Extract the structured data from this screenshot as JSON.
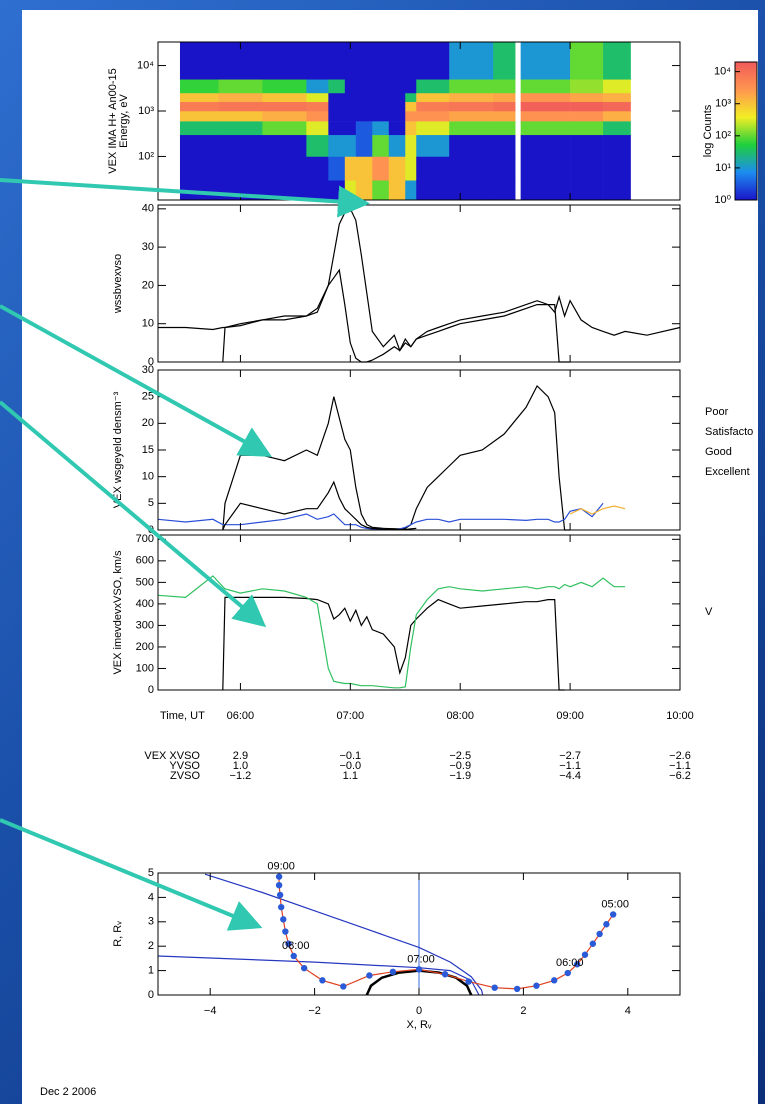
{
  "chart_data": [
    {
      "type": "heatmap",
      "ylabel": [
        "VEX IMA H+ An00-15",
        "Energy, eV"
      ],
      "log_scale": true,
      "xlim": [
        5.25,
        10
      ],
      "ylim": [
        11,
        33000
      ],
      "yticks": [
        {
          "value": 100,
          "label": "10²"
        },
        {
          "value": 1000,
          "label": "10³"
        },
        {
          "value": 10000,
          "label": "10⁴"
        }
      ],
      "x_edges": [
        5.45,
        5.8,
        6.2,
        6.6,
        6.8,
        6.95,
        7.05,
        7.2,
        7.35,
        7.5,
        7.6,
        7.9,
        8.3,
        8.5,
        8.55,
        9.0,
        9.3,
        9.55
      ],
      "y_edges": [
        11,
        30,
        100,
        300,
        600,
        1000,
        1600,
        2500,
        5000,
        33000
      ],
      "z": [
        [
          0,
          0,
          0,
          1.5,
          3,
          3.8,
          3,
          1.8,
          0
        ],
        [
          0,
          0,
          0,
          1.5,
          3,
          3.9,
          3.2,
          2,
          0
        ],
        [
          0,
          0,
          0,
          2,
          3.2,
          3.9,
          3,
          1.8,
          0
        ],
        [
          0,
          0,
          1.5,
          2.5,
          3.5,
          3.8,
          2.5,
          1,
          0
        ],
        [
          0,
          0.5,
          1,
          0,
          0,
          0,
          0,
          1.5,
          0
        ],
        [
          2.5,
          3,
          1,
          0,
          0,
          0,
          0,
          0,
          0
        ],
        [
          3,
          3,
          0.5,
          0.5,
          0,
          0,
          0,
          0,
          0
        ],
        [
          2,
          3.5,
          2,
          1,
          0,
          0,
          0,
          0,
          0
        ],
        [
          3,
          3,
          1,
          0,
          0,
          0,
          0,
          0,
          0
        ],
        [
          1,
          2.5,
          2.5,
          3,
          3.5,
          3,
          1.5,
          0,
          0
        ],
        [
          0,
          0,
          1,
          2.5,
          3.5,
          3.8,
          3,
          1.5,
          0
        ],
        [
          0,
          0,
          0,
          2,
          3.3,
          3.9,
          3.2,
          2,
          1
        ],
        [
          0,
          0,
          0,
          2,
          3.3,
          4,
          3.3,
          2,
          1.5
        ],
        [
          null,
          null,
          null,
          null,
          null,
          null,
          null,
          null,
          null
        ],
        [
          0,
          0,
          0,
          2,
          3.5,
          4.2,
          3.5,
          2,
          1
        ],
        [
          0,
          0,
          0,
          2,
          3.5,
          4.2,
          3.3,
          2.2,
          2
        ],
        [
          0,
          0,
          0,
          1.5,
          3.2,
          4.1,
          3.2,
          2.5,
          1.5
        ]
      ],
      "colorbar": {
        "label": "log Counts",
        "zlim": [
          0,
          4.3
        ],
        "colormap": [
          "#1a14c8",
          "#1d8cf0",
          "#1ecf3c",
          "#f2ee24",
          "#ff9650",
          "#f05a5a"
        ],
        "ticks": [
          {
            "value": 0,
            "label": "10⁰"
          },
          {
            "value": 1,
            "label": "10¹"
          },
          {
            "value": 2,
            "label": "10²"
          },
          {
            "value": 3,
            "label": "10³"
          },
          {
            "value": 4,
            "label": "10⁴"
          }
        ]
      }
    },
    {
      "type": "line",
      "ylabel": [
        "wssbvexvso"
      ],
      "xlim": [
        5.25,
        10
      ],
      "ylim": [
        0,
        41
      ],
      "yticks": [
        0,
        10,
        20,
        30,
        40
      ],
      "x": [
        5.25,
        5.5,
        5.75,
        5.84,
        5.86,
        6.0,
        6.2,
        6.4,
        6.6,
        6.7,
        6.8,
        6.85,
        6.9,
        6.95,
        7.0,
        7.05,
        7.1,
        7.15,
        7.2,
        7.3,
        7.4,
        7.45,
        7.5,
        7.55,
        7.6,
        7.7,
        7.8,
        7.9,
        8.0,
        8.2,
        8.4,
        8.6,
        8.7,
        8.8,
        8.86,
        8.9,
        8.95,
        9.0,
        9.1,
        9.2,
        9.3,
        9.4,
        9.5,
        9.7,
        10.0
      ],
      "series": [
        {
          "color": "#000000",
          "values": [
            9,
            9,
            8.5,
            9,
            9,
            9.5,
            11,
            12,
            12,
            13,
            20,
            28,
            36,
            39,
            40,
            37,
            28,
            18,
            8,
            4,
            7,
            3,
            6,
            4,
            6,
            8,
            9,
            10,
            11,
            12,
            13,
            15,
            16,
            15,
            13,
            17,
            12,
            16,
            11,
            9,
            8,
            7,
            8,
            7,
            9
          ]
        },
        {
          "color": "#000000",
          "values": [
            null,
            null,
            null,
            0,
            9,
            10,
            11,
            11,
            12,
            14,
            20,
            22,
            24,
            15,
            5,
            1,
            0,
            0,
            0.5,
            2,
            4,
            3,
            5,
            4,
            6,
            7,
            8,
            9,
            10,
            11,
            12,
            14,
            15,
            15,
            15,
            0,
            0,
            0,
            null,
            null,
            null,
            null,
            null,
            null,
            null
          ]
        }
      ]
    },
    {
      "type": "line",
      "ylabel": [
        "VEX wsgeyeld densm⁻³"
      ],
      "xlim": [
        5.25,
        10
      ],
      "ylim": [
        0,
        30
      ],
      "yticks": [
        0,
        5,
        10,
        15,
        20,
        25,
        30
      ],
      "x": [
        5.25,
        5.5,
        5.75,
        5.84,
        5.86,
        6.0,
        6.2,
        6.4,
        6.6,
        6.7,
        6.8,
        6.85,
        6.9,
        6.95,
        7.0,
        7.05,
        7.1,
        7.15,
        7.2,
        7.3,
        7.4,
        7.45,
        7.5,
        7.55,
        7.6,
        7.7,
        7.8,
        7.9,
        8.0,
        8.2,
        8.4,
        8.6,
        8.7,
        8.8,
        8.86,
        8.9,
        8.95,
        9.0,
        9.1,
        9.2,
        9.3,
        9.4,
        9.5,
        9.7,
        10.0
      ],
      "series": [
        {
          "name": "Poor",
          "color": "#000000",
          "values": [
            null,
            null,
            null,
            0,
            5,
            14,
            14,
            13,
            15,
            14,
            20,
            25,
            21,
            17,
            15,
            8,
            3,
            1,
            0.5,
            0.3,
            0.2,
            0.2,
            0.3,
            1,
            4,
            8,
            10,
            12,
            14,
            15,
            18,
            23,
            27,
            25,
            22,
            10,
            0,
            0,
            null,
            null,
            null,
            null,
            null,
            null,
            null
          ]
        },
        {
          "name": "Satisfacto",
          "color": "#2a4fd8",
          "values": [
            2,
            1.5,
            2,
            1,
            1,
            1,
            1.5,
            2,
            3,
            2,
            2.5,
            3,
            2,
            1,
            1,
            1,
            0.5,
            0.3,
            0.2,
            0.2,
            0.1,
            0.2,
            0.5,
            1,
            1.5,
            2,
            2,
            1.5,
            2,
            2,
            2,
            1.8,
            2,
            2,
            1.5,
            1.5,
            2,
            3.5,
            4,
            2.5,
            5,
            null,
            null,
            null,
            null
          ]
        },
        {
          "name": "Good",
          "color": "#f0b030",
          "values": [
            null,
            null,
            null,
            null,
            null,
            null,
            null,
            null,
            null,
            null,
            null,
            null,
            null,
            null,
            null,
            null,
            null,
            null,
            null,
            null,
            null,
            null,
            null,
            null,
            null,
            null,
            null,
            null,
            null,
            null,
            null,
            null,
            null,
            null,
            null,
            null,
            null,
            3,
            4,
            3,
            4,
            4.5,
            4,
            null,
            null
          ]
        },
        {
          "name": "Excellent",
          "color": "#e83020",
          "values": [
            null,
            null,
            null,
            null,
            null,
            null,
            null,
            null,
            null,
            null,
            null,
            null,
            null,
            null,
            null,
            null,
            null,
            null,
            null,
            null,
            null,
            null,
            null,
            null,
            null,
            null,
            null,
            null,
            null,
            null,
            null,
            null,
            null,
            null,
            null,
            null,
            null,
            null,
            null,
            null,
            null,
            null,
            null,
            null,
            null
          ]
        },
        {
          "color": "#000000",
          "values": [
            null,
            null,
            null,
            0,
            1,
            5,
            4,
            3,
            4,
            4,
            7,
            9,
            6,
            4,
            3,
            2,
            1,
            0.5,
            0.3,
            0.2,
            0.2,
            0.1,
            0.1,
            0.2,
            0.3,
            null,
            null,
            null,
            null,
            null,
            null,
            null,
            null,
            null,
            null,
            null,
            null,
            null,
            null,
            null,
            null,
            null,
            null,
            null,
            null
          ]
        }
      ]
    },
    {
      "type": "line",
      "ylabel": [
        "VEX imevdevxVSO, km/s"
      ],
      "xlabel": "Time, UT",
      "xlim": [
        5.25,
        10
      ],
      "ylim": [
        0,
        720
      ],
      "yticks": [
        0,
        100,
        200,
        300,
        400,
        500,
        600,
        700
      ],
      "xticks": [
        {
          "value": 6,
          "label": "06:00"
        },
        {
          "value": 7,
          "label": "07:00"
        },
        {
          "value": 8,
          "label": "08:00"
        },
        {
          "value": 9,
          "label": "09:00"
        },
        {
          "value": 10,
          "label": "10:00"
        }
      ],
      "x": [
        5.25,
        5.5,
        5.75,
        5.84,
        5.86,
        6.0,
        6.2,
        6.4,
        6.6,
        6.7,
        6.8,
        6.85,
        6.9,
        6.95,
        7.0,
        7.05,
        7.1,
        7.15,
        7.2,
        7.3,
        7.4,
        7.45,
        7.5,
        7.55,
        7.6,
        7.7,
        7.8,
        7.9,
        8.0,
        8.2,
        8.4,
        8.6,
        8.7,
        8.8,
        8.86,
        8.9,
        8.95,
        9.0,
        9.1,
        9.2,
        9.3,
        9.4,
        9.5,
        9.7,
        10.0
      ],
      "series": [
        {
          "color": "#000000",
          "values": [
            null,
            null,
            null,
            0,
            430,
            430,
            430,
            430,
            425,
            420,
            400,
            330,
            350,
            380,
            320,
            370,
            300,
            340,
            280,
            260,
            200,
            80,
            150,
            300,
            330,
            380,
            420,
            400,
            380,
            390,
            400,
            410,
            410,
            420,
            420,
            0,
            0,
            null,
            null,
            null,
            null,
            null,
            null,
            null,
            null
          ]
        },
        {
          "name": "V",
          "color": "#30c060",
          "values": [
            440,
            430,
            530,
            480,
            470,
            450,
            470,
            460,
            430,
            400,
            100,
            40,
            35,
            30,
            30,
            25,
            20,
            20,
            20,
            15,
            10,
            10,
            15,
            200,
            350,
            420,
            470,
            480,
            470,
            460,
            470,
            480,
            470,
            480,
            480,
            470,
            490,
            480,
            500,
            480,
            520,
            480,
            480,
            null,
            null
          ]
        }
      ],
      "table": {
        "row_labels": [
          "VEX XVSO",
          "YVSO",
          "ZVSO"
        ],
        "rows": [
          [
            "2.9",
            "−0.1",
            "−2.5",
            "−2.7",
            "−2.6"
          ],
          [
            "1.0",
            "−0.0",
            "−0.9",
            "−1.1",
            "−1.1"
          ],
          [
            "−1.2",
            "1.1",
            "−1.9",
            "−4.4",
            "−6.2"
          ]
        ]
      }
    },
    {
      "type": "line",
      "xlabel": "X, Rᵥ",
      "ylabel": [
        "R, Rᵥ"
      ],
      "xlim": [
        -5,
        5
      ],
      "ylim": [
        0,
        5
      ],
      "xticks": [
        {
          "value": -4,
          "label": "−4"
        },
        {
          "value": -2,
          "label": "−2"
        },
        0,
        2,
        4
      ],
      "yticks": [
        0,
        1,
        2,
        3,
        4,
        5
      ],
      "vline": {
        "x": 0,
        "color": "#3a6ad8"
      },
      "series": [
        {
          "color": "#2638c0",
          "x": [
            -4.1,
            -3,
            -2,
            -1,
            0,
            0.6,
            1.0,
            1.2,
            1.22
          ],
          "values": [
            4.95,
            4.2,
            3.45,
            2.7,
            1.95,
            1.35,
            0.75,
            0.2,
            0
          ]
        },
        {
          "color": "#2638c0",
          "x": [
            -5,
            -2,
            0,
            0.6,
            1.0,
            1.15
          ],
          "values": [
            1.6,
            1.35,
            1.12,
            1.0,
            0.6,
            0
          ]
        },
        {
          "color": "#000000",
          "x": [
            1,
            0.92,
            0.71,
            0.38,
            0,
            -0.38,
            -0.71,
            -0.92,
            -1
          ],
          "values": [
            0,
            0.38,
            0.71,
            0.92,
            1,
            0.92,
            0.71,
            0.38,
            0
          ]
        },
        {
          "color": "#e04020",
          "marker_color": "#2a5ad8",
          "x": [
            3.72,
            3.59,
            3.46,
            3.33,
            3.18,
            3.03,
            2.85,
            2.59,
            2.25,
            1.88,
            1.45,
            0.95,
            0.5,
            0,
            -0.5,
            -0.95,
            -1.45,
            -1.85,
            -2.2,
            -2.4,
            -2.5,
            -2.56,
            -2.6,
            -2.64,
            -2.66,
            -2.68,
            -2.68
          ],
          "values": [
            3.3,
            2.9,
            2.5,
            2.1,
            1.65,
            1.26,
            0.9,
            0.6,
            0.38,
            0.25,
            0.3,
            0.55,
            0.85,
            1.05,
            0.95,
            0.8,
            0.35,
            0.6,
            1.1,
            1.6,
            2.1,
            2.6,
            3.1,
            3.6,
            4.1,
            4.5,
            4.85
          ],
          "point_labels": [
            "05:00",
            null,
            null,
            null,
            null,
            null,
            "06:00",
            null,
            null,
            null,
            null,
            null,
            null,
            "07:00",
            null,
            null,
            null,
            null,
            null,
            "08:00",
            null,
            null,
            null,
            null,
            null,
            null,
            "09:00"
          ]
        }
      ]
    }
  ],
  "footer": {
    "date": "Dec  2 2006"
  }
}
